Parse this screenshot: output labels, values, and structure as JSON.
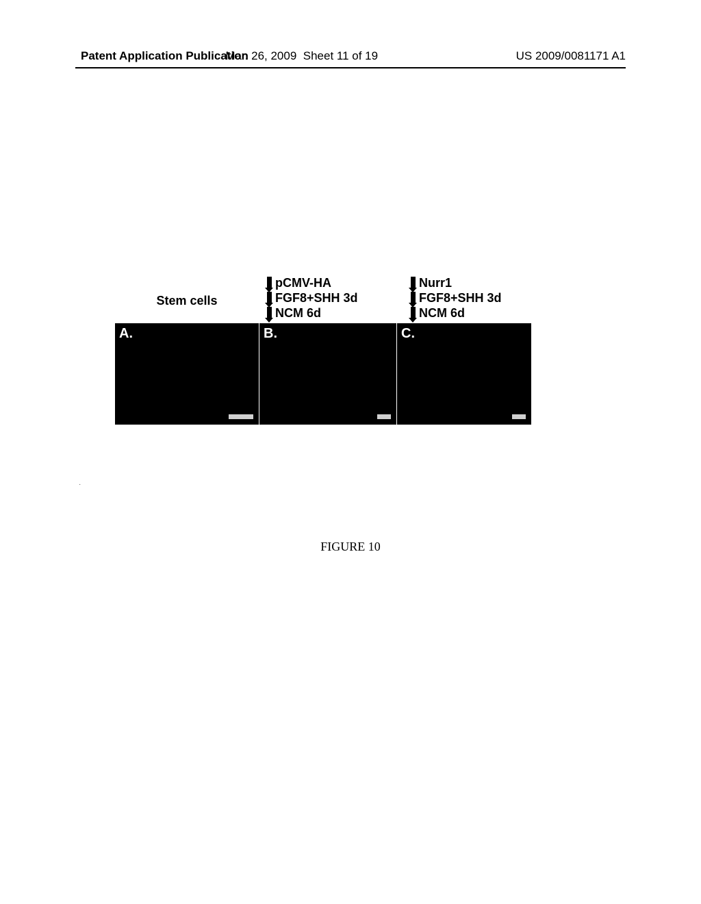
{
  "header": {
    "left": "Patent Application Publication",
    "center_date": "Mar. 26, 2009",
    "center_sheet": "Sheet 11 of 19",
    "right": "US 2009/0081171 A1"
  },
  "figure": {
    "labels": {
      "col1": {
        "line1": "Stem cells"
      },
      "col2": {
        "line1": "pCMV-HA",
        "line2": "FGF8+SHH 3d",
        "line3": "NCM 6d"
      },
      "col3": {
        "line1": "Nurr1",
        "line2": "FGF8+SHH 3d",
        "line3": "NCM 6d"
      }
    },
    "panels": {
      "a": "A.",
      "b": "B.",
      "c": "C."
    },
    "caption": "FIGURE 10",
    "colors": {
      "panel_bg": "#000000",
      "panel_label": "#ffffff",
      "scale_bar": "#d0d0d0",
      "text": "#000000",
      "page_bg": "#ffffff"
    }
  }
}
